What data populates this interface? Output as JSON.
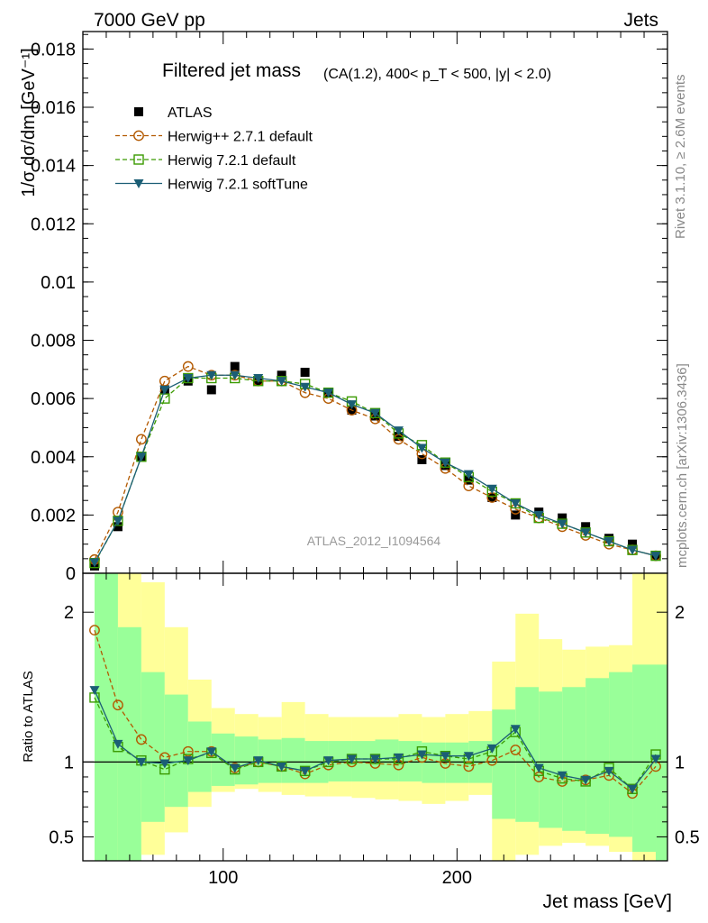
{
  "header": {
    "left_label": "7000 GeV pp",
    "right_label": "Jets"
  },
  "side_labels": {
    "rivet": "Rivet 3.1.10, ≥ 2.6M events",
    "mcplots": "mcplots.cern.ch [arXiv:1306.3436]"
  },
  "chart_data": [
    {
      "type": "scatter",
      "title": "Filtered jet mass",
      "subtitle": "(CA(1.2), 400< p_T < 500, |y| < 2.0)",
      "watermark": "ATLAS_2012_I1094564",
      "xlabel": "",
      "ylabel": "1/σ dσ/dm [GeV⁻¹]",
      "xlim": [
        40,
        290
      ],
      "ylim": [
        0,
        0.0186
      ],
      "yticks": [
        {
          "v": 0,
          "label": "0"
        },
        {
          "v": 0.002,
          "label": "0.002"
        },
        {
          "v": 0.004,
          "label": "0.004"
        },
        {
          "v": 0.006,
          "label": "0.006"
        },
        {
          "v": 0.008,
          "label": "0.008"
        },
        {
          "v": 0.01,
          "label": "0.01"
        },
        {
          "v": 0.012,
          "label": "0.012"
        },
        {
          "v": 0.014,
          "label": "0.014"
        },
        {
          "v": 0.016,
          "label": "0.016"
        },
        {
          "v": 0.018,
          "label": "0.018"
        }
      ],
      "legend_position": "top-left",
      "x": [
        45,
        55,
        65,
        75,
        85,
        95,
        105,
        115,
        125,
        135,
        145,
        155,
        165,
        175,
        185,
        195,
        205,
        215,
        225,
        235,
        245,
        255,
        265,
        275,
        285
      ],
      "series": [
        {
          "name": "ATLAS",
          "color": "#000000",
          "marker": "filled-square",
          "line": "none",
          "values": [
            0.00025,
            0.0016,
            0.004,
            0.0063,
            0.0066,
            0.0063,
            0.0071,
            0.0066,
            0.0068,
            0.0069,
            0.0062,
            0.0056,
            0.0054,
            0.0047,
            0.0039,
            0.0037,
            0.0032,
            0.0026,
            0.002,
            0.0021,
            0.0019,
            0.0016,
            0.0012,
            0.001,
            0.0006
          ]
        },
        {
          "name": "Herwig++ 2.7.1 default",
          "color": "#b35900",
          "marker": "open-circle",
          "line": "dashed",
          "values": [
            0.00047,
            0.0021,
            0.0046,
            0.0066,
            0.0071,
            0.0068,
            0.0068,
            0.0066,
            0.0066,
            0.0062,
            0.006,
            0.0056,
            0.0053,
            0.0046,
            0.0041,
            0.0036,
            0.003,
            0.0026,
            0.0022,
            0.0019,
            0.0016,
            0.0013,
            0.001,
            0.0008,
            0.0006
          ]
        },
        {
          "name": "Herwig 7.2.1 default",
          "color": "#3a9a00",
          "marker": "open-square",
          "line": "dashed",
          "values": [
            0.00035,
            0.0018,
            0.004,
            0.006,
            0.0067,
            0.0067,
            0.0067,
            0.0066,
            0.0066,
            0.0065,
            0.0062,
            0.0059,
            0.0055,
            0.0048,
            0.0044,
            0.0038,
            0.0033,
            0.0028,
            0.0024,
            0.0019,
            0.0017,
            0.0014,
            0.0011,
            0.0008,
            0.0006
          ]
        },
        {
          "name": "Herwig 7.2.1 softTune",
          "color": "#1b5e75",
          "marker": "filled-triangle-down",
          "line": "solid",
          "values": [
            0.00037,
            0.0018,
            0.004,
            0.0063,
            0.0067,
            0.0068,
            0.0068,
            0.0067,
            0.0066,
            0.0064,
            0.0062,
            0.0058,
            0.0055,
            0.0049,
            0.0043,
            0.0038,
            0.0034,
            0.0029,
            0.0024,
            0.002,
            0.0017,
            0.0014,
            0.0011,
            0.0008,
            0.0006
          ]
        }
      ]
    },
    {
      "type": "line",
      "xlabel": "Jet mass [GeV]",
      "ylabel": "Ratio to ATLAS",
      "xlim": [
        40,
        290
      ],
      "ylim": [
        0.34,
        2.26
      ],
      "xticks": [
        {
          "v": 100,
          "label": "100"
        },
        {
          "v": 200,
          "label": "200"
        }
      ],
      "yticks": [
        {
          "v": 0.5,
          "label": "0.5"
        },
        {
          "v": 1,
          "label": "1"
        },
        {
          "v": 2,
          "label": "2"
        }
      ],
      "reference_line": 1,
      "bins": [
        [
          45,
          55
        ],
        [
          55,
          65
        ],
        [
          65,
          75
        ],
        [
          75,
          85
        ],
        [
          85,
          95
        ],
        [
          95,
          105
        ],
        [
          105,
          115
        ],
        [
          115,
          125
        ],
        [
          125,
          135
        ],
        [
          135,
          145
        ],
        [
          145,
          155
        ],
        [
          155,
          165
        ],
        [
          165,
          175
        ],
        [
          175,
          185
        ],
        [
          185,
          195
        ],
        [
          195,
          205
        ],
        [
          205,
          215
        ],
        [
          215,
          225
        ],
        [
          225,
          235
        ],
        [
          235,
          245
        ],
        [
          245,
          255
        ],
        [
          255,
          265
        ],
        [
          265,
          275
        ],
        [
          275,
          285
        ],
        [
          285,
          295
        ]
      ],
      "bands": {
        "stat": {
          "color": "#99ff99",
          "low": [
            0.34,
            0.34,
            0.6,
            0.7,
            0.8,
            0.84,
            0.85,
            0.86,
            0.86,
            0.86,
            0.87,
            0.87,
            0.87,
            0.87,
            0.86,
            0.86,
            0.86,
            0.62,
            0.6,
            0.56,
            0.54,
            0.52,
            0.5,
            0.4,
            0.34
          ],
          "high": [
            2.26,
            1.9,
            1.6,
            1.45,
            1.27,
            1.19,
            1.17,
            1.15,
            1.16,
            1.14,
            1.14,
            1.14,
            1.15,
            1.14,
            1.13,
            1.13,
            1.14,
            1.35,
            1.5,
            1.47,
            1.5,
            1.56,
            1.6,
            1.65,
            1.65
          ]
        },
        "total": {
          "color": "#ffff99",
          "low": [
            0.34,
            0.34,
            0.34,
            0.34,
            0.34,
            0.34,
            0.34,
            0.34,
            0.34,
            0.34,
            0.34,
            0.34,
            0.34,
            0.34,
            0.34,
            0.34,
            0.34,
            0.34,
            0.34,
            0.34,
            0.34,
            0.34,
            0.34,
            0.34,
            0.34
          ],
          "high": [
            2.26,
            2.26,
            2.2,
            1.9,
            1.55,
            1.36,
            1.32,
            1.3,
            1.4,
            1.32,
            1.3,
            1.3,
            1.3,
            1.32,
            1.3,
            1.32,
            1.34,
            1.67,
            1.99,
            1.82,
            1.75,
            1.77,
            1.78,
            2.26,
            2.26
          ]
        },
        "total_low": [
          0.34,
          0.34,
          0.38,
          0.53,
          0.7,
          0.8,
          0.82,
          0.8,
          0.78,
          0.77,
          0.77,
          0.76,
          0.75,
          0.74,
          0.72,
          0.74,
          0.78,
          0.34,
          0.38,
          0.44,
          0.46,
          0.44,
          0.4,
          0.34,
          0.34
        ]
      },
      "series": [
        {
          "name": "Herwig++ 2.7.1 default",
          "color": "#b35900",
          "marker": "open-circle",
          "line": "dashed",
          "values": [
            1.88,
            1.38,
            1.15,
            1.03,
            1.07,
            1.07,
            0.96,
            1.0,
            0.97,
            0.92,
            0.98,
            1.0,
            0.99,
            0.98,
            1.03,
            0.99,
            0.97,
            1.01,
            1.08,
            0.9,
            0.87,
            0.88,
            0.91,
            0.79,
            0.97
          ]
        },
        {
          "name": "Herwig 7.2.1 default",
          "color": "#3a9a00",
          "marker": "open-square",
          "line": "dashed",
          "values": [
            1.43,
            1.1,
            1.01,
            0.95,
            1.02,
            1.06,
            0.95,
            1.0,
            0.97,
            0.94,
            1.0,
            1.02,
            1.02,
            1.02,
            1.07,
            1.04,
            1.02,
            1.07,
            1.2,
            0.94,
            0.89,
            0.87,
            0.96,
            0.82,
            1.05
          ]
        },
        {
          "name": "Herwig 7.2.1 softTune",
          "color": "#1b5e75",
          "marker": "filled-triangle-down",
          "line": "solid",
          "values": [
            1.48,
            1.12,
            1.0,
            0.99,
            1.01,
            1.07,
            0.96,
            1.01,
            0.97,
            0.94,
            1.01,
            1.02,
            1.02,
            1.03,
            1.05,
            1.04,
            1.04,
            1.09,
            1.22,
            0.96,
            0.91,
            0.88,
            0.94,
            0.82,
            1.02
          ]
        }
      ]
    }
  ]
}
